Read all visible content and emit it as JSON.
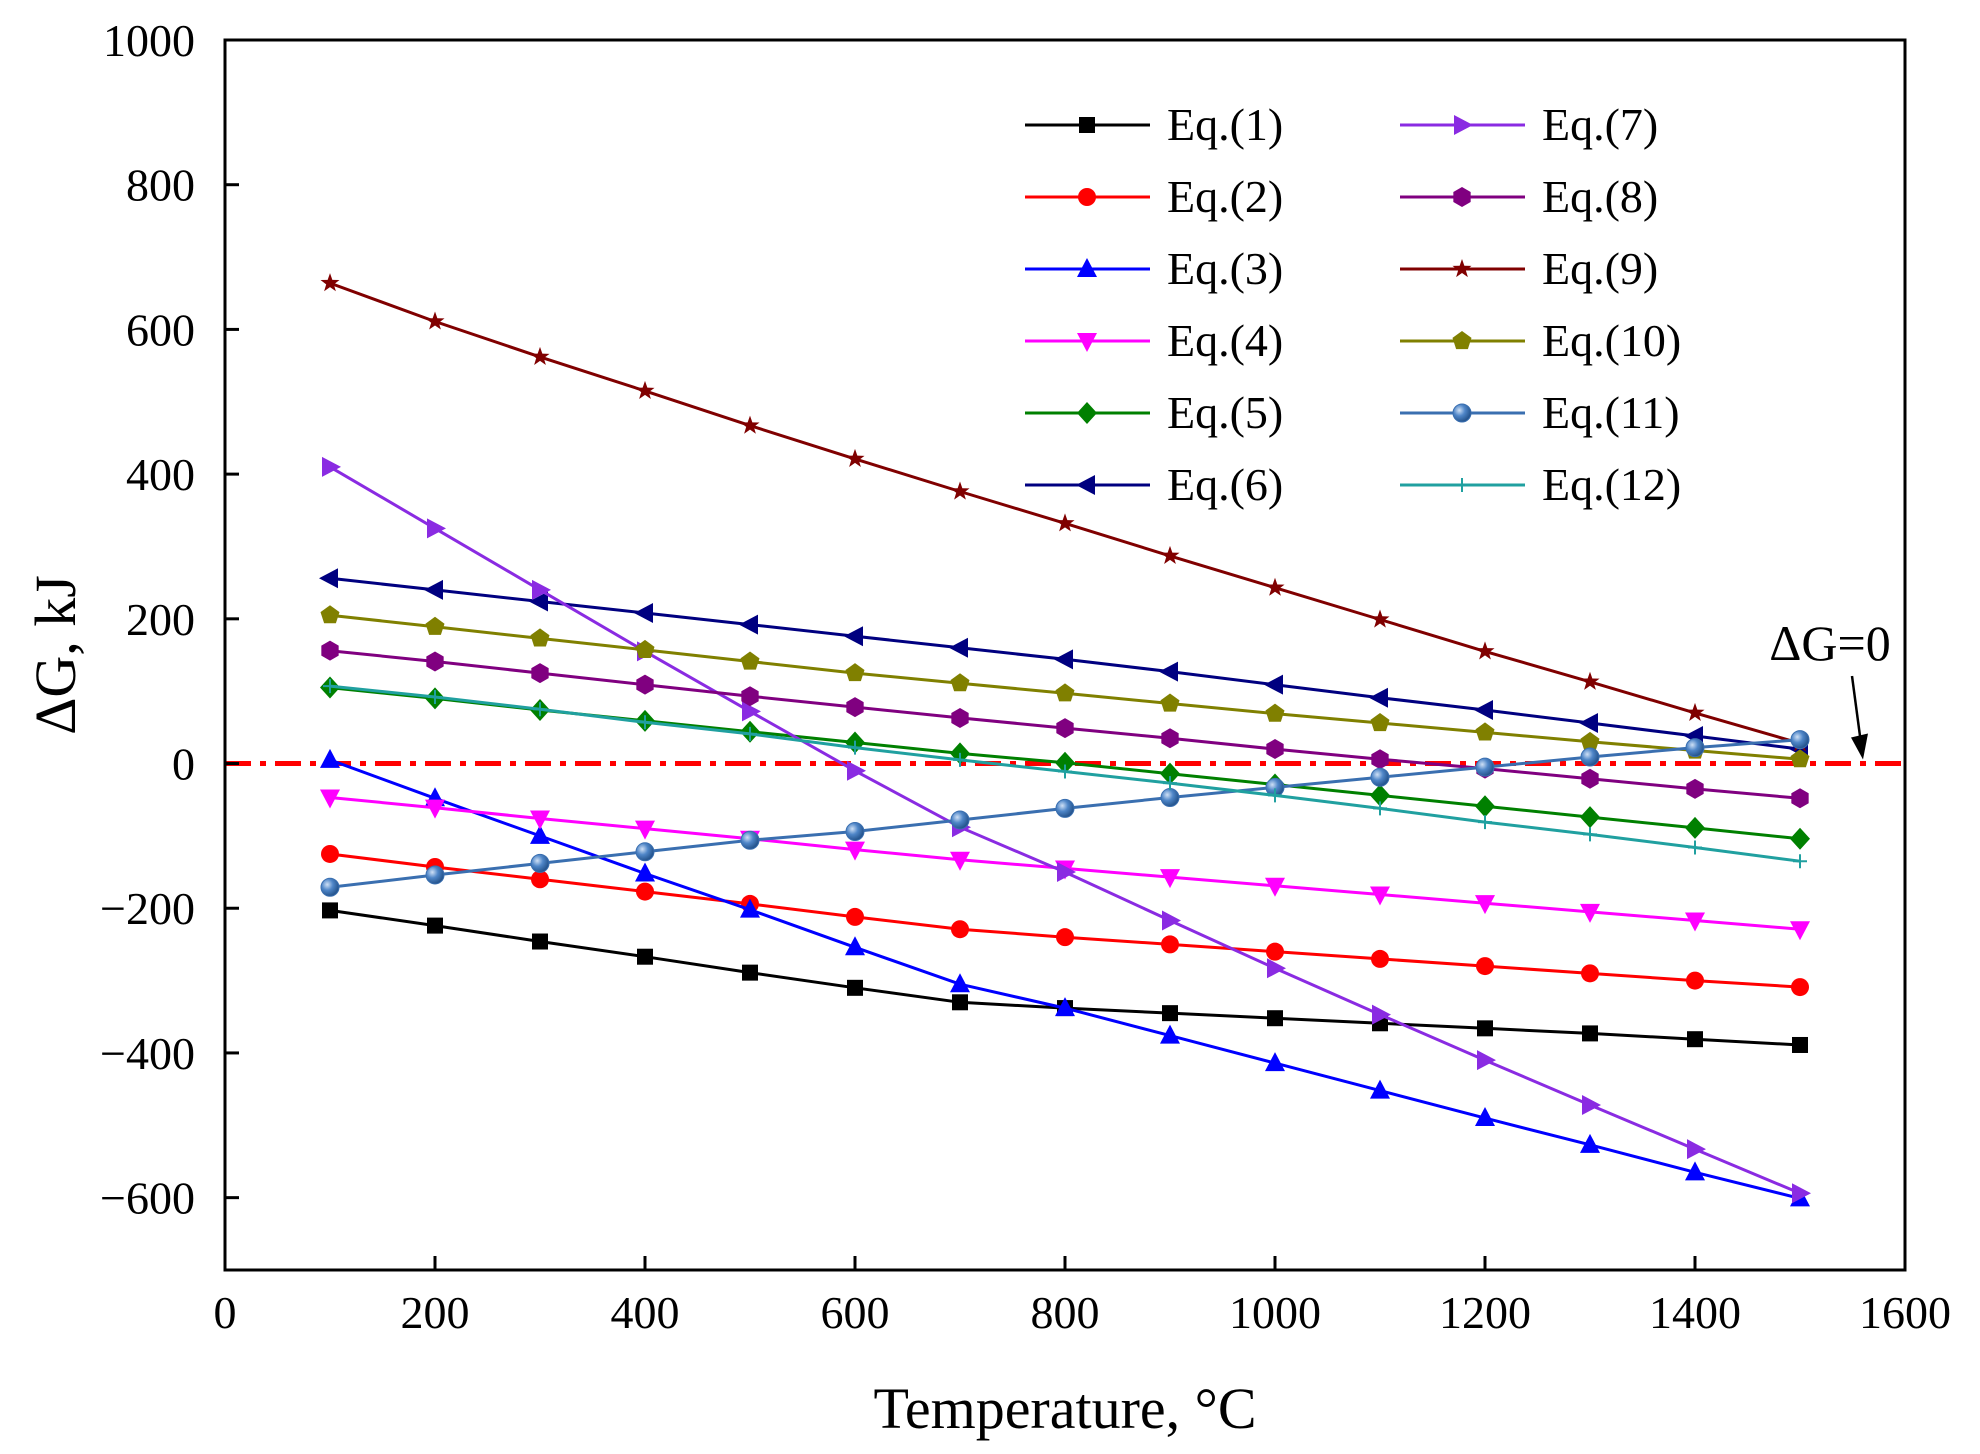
{
  "chart_data": {
    "type": "line",
    "title": "",
    "xlabel": "Temperature, °C",
    "ylabel": "ΔG, kJ",
    "xlim": [
      0,
      1600
    ],
    "ylim": [
      -700,
      1000
    ],
    "xticks": [
      0,
      200,
      400,
      600,
      800,
      1000,
      1200,
      1400,
      1600
    ],
    "yticks": [
      -600,
      -400,
      -200,
      0,
      200,
      400,
      600,
      800,
      1000
    ],
    "xtick_labels": [
      "0",
      "200",
      "400",
      "600",
      "800",
      "1000",
      "1200",
      "1400",
      "1600"
    ],
    "ytick_labels": [
      "−600",
      "−400",
      "−200",
      "0",
      "200",
      "400",
      "600",
      "800",
      "1000"
    ],
    "grid": false,
    "legend_position": "top-right",
    "x": [
      100,
      200,
      300,
      400,
      500,
      600,
      700,
      800,
      900,
      1000,
      1100,
      1200,
      1300,
      1400,
      1500
    ],
    "reference_line": {
      "y": 0,
      "color": "#ff0000",
      "style": "dash-dot"
    },
    "annotation": {
      "text": "ΔG=0",
      "x": 1560,
      "y": 0
    },
    "series": [
      {
        "name": "Eq.(1)",
        "color": "#000000",
        "marker": "square",
        "values": [
          -203,
          -224,
          -246,
          -267,
          -289,
          -310,
          -330,
          -338,
          -345,
          -352,
          -359,
          -366,
          -373,
          -381,
          -389
        ]
      },
      {
        "name": "Eq.(2)",
        "color": "#ff0000",
        "marker": "circle",
        "values": [
          -125,
          -143,
          -160,
          -177,
          -194,
          -212,
          -229,
          -240,
          -250,
          -260,
          -270,
          -280,
          -290,
          -300,
          -309
        ]
      },
      {
        "name": "Eq.(3)",
        "color": "#0000ff",
        "marker": "triangle-up",
        "values": [
          5,
          -48,
          -100,
          -152,
          -202,
          -254,
          -305,
          -338,
          -376,
          -414,
          -452,
          -490,
          -527,
          -565,
          -601
        ]
      },
      {
        "name": "Eq.(4)",
        "color": "#ff00ff",
        "marker": "triangle-down",
        "values": [
          -47,
          -61,
          -76,
          -90,
          -104,
          -119,
          -133,
          -145,
          -157,
          -169,
          -181,
          -193,
          -205,
          -217,
          -229
        ]
      },
      {
        "name": "Eq.(5)",
        "color": "#008000",
        "marker": "diamond",
        "values": [
          105,
          90,
          74,
          59,
          44,
          29,
          14,
          1,
          -14,
          -29,
          -44,
          -59,
          -74,
          -89,
          -104
        ]
      },
      {
        "name": "Eq.(6)",
        "color": "#000080",
        "marker": "triangle-left",
        "values": [
          256,
          240,
          224,
          208,
          192,
          176,
          160,
          144,
          127,
          109,
          91,
          74,
          56,
          38,
          20
        ]
      },
      {
        "name": "Eq.(7)",
        "color": "#8a2be2",
        "marker": "triangle-right",
        "values": [
          410,
          325,
          240,
          155,
          72,
          -10,
          -88,
          -150,
          -217,
          -283,
          -347,
          -410,
          -472,
          -533,
          -594
        ]
      },
      {
        "name": "Eq.(8)",
        "color": "#800080",
        "marker": "hexagon",
        "values": [
          156,
          141,
          125,
          109,
          93,
          78,
          63,
          49,
          35,
          20,
          6,
          -7,
          -21,
          -35,
          -48
        ]
      },
      {
        "name": "Eq.(9)",
        "color": "#800000",
        "marker": "star",
        "values": [
          664,
          611,
          562,
          515,
          467,
          421,
          376,
          332,
          287,
          243,
          199,
          155,
          113,
          70,
          28
        ]
      },
      {
        "name": "Eq.(10)",
        "color": "#808000",
        "marker": "pentagon",
        "values": [
          205,
          189,
          173,
          157,
          141,
          125,
          111,
          97,
          83,
          69,
          56,
          43,
          30,
          18,
          6
        ]
      },
      {
        "name": "Eq.(11)",
        "color": "#3a6fb0",
        "marker": "sphere",
        "values": [
          -171,
          -154,
          -138,
          -122,
          -106,
          -94,
          -78,
          -62,
          -47,
          -33,
          -19,
          -5,
          9,
          22,
          33
        ]
      },
      {
        "name": "Eq.(12)",
        "color": "#20a0a0",
        "marker": "plus",
        "values": [
          107,
          92,
          75,
          57,
          41,
          22,
          5,
          -11,
          -27,
          -44,
          -62,
          -81,
          -98,
          -116,
          -135
        ]
      }
    ]
  }
}
